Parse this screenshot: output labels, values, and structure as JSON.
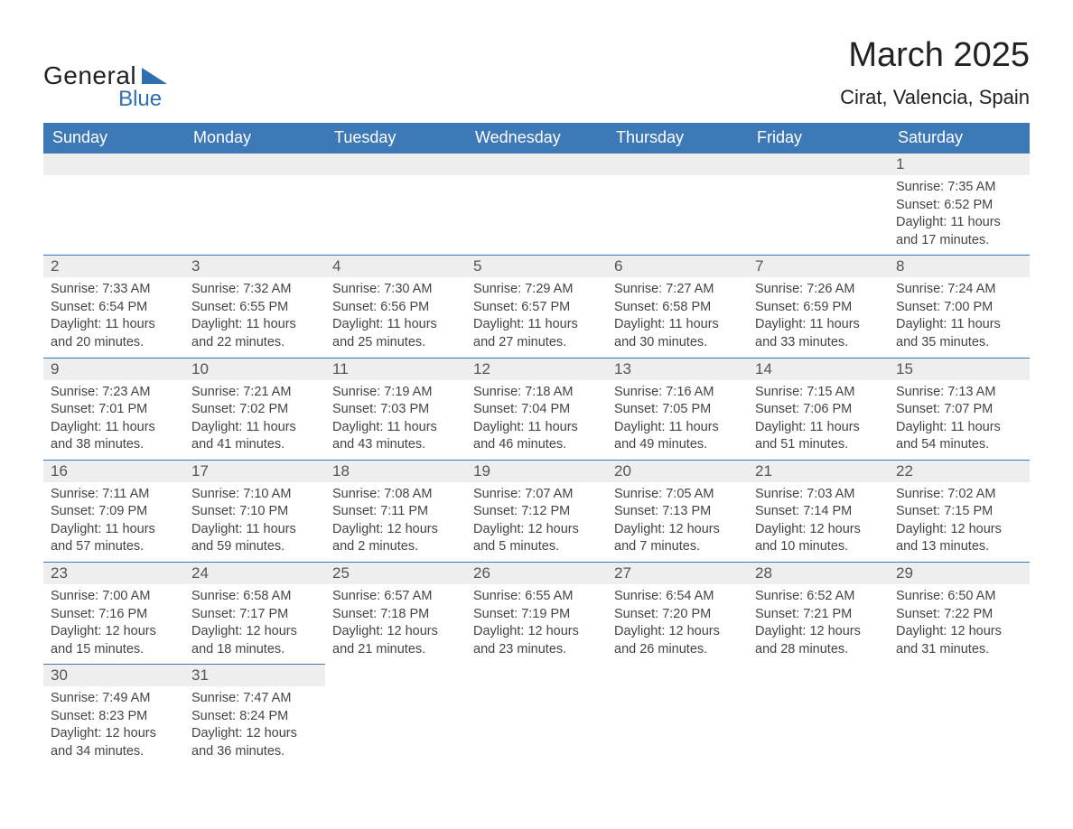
{
  "brand": {
    "word1": "General",
    "word2": "Blue",
    "accent_color": "#2f6eb0"
  },
  "header": {
    "title": "March 2025",
    "location": "Cirat, Valencia, Spain"
  },
  "colors": {
    "header_bg": "#3d79b6",
    "header_fg": "#ffffff",
    "row_divider": "#3d79b6",
    "daynum_bg": "#eeeeee",
    "text": "#444444"
  },
  "weekdays": [
    "Sunday",
    "Monday",
    "Tuesday",
    "Wednesday",
    "Thursday",
    "Friday",
    "Saturday"
  ],
  "label": {
    "sunrise": "Sunrise: ",
    "sunset": "Sunset: ",
    "daylight_prefix": "Daylight: "
  },
  "weeks": [
    [
      null,
      null,
      null,
      null,
      null,
      null,
      {
        "n": "1",
        "sunrise": "7:35 AM",
        "sunset": "6:52 PM",
        "daylight": "11 hours and 17 minutes."
      }
    ],
    [
      {
        "n": "2",
        "sunrise": "7:33 AM",
        "sunset": "6:54 PM",
        "daylight": "11 hours and 20 minutes."
      },
      {
        "n": "3",
        "sunrise": "7:32 AM",
        "sunset": "6:55 PM",
        "daylight": "11 hours and 22 minutes."
      },
      {
        "n": "4",
        "sunrise": "7:30 AM",
        "sunset": "6:56 PM",
        "daylight": "11 hours and 25 minutes."
      },
      {
        "n": "5",
        "sunrise": "7:29 AM",
        "sunset": "6:57 PM",
        "daylight": "11 hours and 27 minutes."
      },
      {
        "n": "6",
        "sunrise": "7:27 AM",
        "sunset": "6:58 PM",
        "daylight": "11 hours and 30 minutes."
      },
      {
        "n": "7",
        "sunrise": "7:26 AM",
        "sunset": "6:59 PM",
        "daylight": "11 hours and 33 minutes."
      },
      {
        "n": "8",
        "sunrise": "7:24 AM",
        "sunset": "7:00 PM",
        "daylight": "11 hours and 35 minutes."
      }
    ],
    [
      {
        "n": "9",
        "sunrise": "7:23 AM",
        "sunset": "7:01 PM",
        "daylight": "11 hours and 38 minutes."
      },
      {
        "n": "10",
        "sunrise": "7:21 AM",
        "sunset": "7:02 PM",
        "daylight": "11 hours and 41 minutes."
      },
      {
        "n": "11",
        "sunrise": "7:19 AM",
        "sunset": "7:03 PM",
        "daylight": "11 hours and 43 minutes."
      },
      {
        "n": "12",
        "sunrise": "7:18 AM",
        "sunset": "7:04 PM",
        "daylight": "11 hours and 46 minutes."
      },
      {
        "n": "13",
        "sunrise": "7:16 AM",
        "sunset": "7:05 PM",
        "daylight": "11 hours and 49 minutes."
      },
      {
        "n": "14",
        "sunrise": "7:15 AM",
        "sunset": "7:06 PM",
        "daylight": "11 hours and 51 minutes."
      },
      {
        "n": "15",
        "sunrise": "7:13 AM",
        "sunset": "7:07 PM",
        "daylight": "11 hours and 54 minutes."
      }
    ],
    [
      {
        "n": "16",
        "sunrise": "7:11 AM",
        "sunset": "7:09 PM",
        "daylight": "11 hours and 57 minutes."
      },
      {
        "n": "17",
        "sunrise": "7:10 AM",
        "sunset": "7:10 PM",
        "daylight": "11 hours and 59 minutes."
      },
      {
        "n": "18",
        "sunrise": "7:08 AM",
        "sunset": "7:11 PM",
        "daylight": "12 hours and 2 minutes."
      },
      {
        "n": "19",
        "sunrise": "7:07 AM",
        "sunset": "7:12 PM",
        "daylight": "12 hours and 5 minutes."
      },
      {
        "n": "20",
        "sunrise": "7:05 AM",
        "sunset": "7:13 PM",
        "daylight": "12 hours and 7 minutes."
      },
      {
        "n": "21",
        "sunrise": "7:03 AM",
        "sunset": "7:14 PM",
        "daylight": "12 hours and 10 minutes."
      },
      {
        "n": "22",
        "sunrise": "7:02 AM",
        "sunset": "7:15 PM",
        "daylight": "12 hours and 13 minutes."
      }
    ],
    [
      {
        "n": "23",
        "sunrise": "7:00 AM",
        "sunset": "7:16 PM",
        "daylight": "12 hours and 15 minutes."
      },
      {
        "n": "24",
        "sunrise": "6:58 AM",
        "sunset": "7:17 PM",
        "daylight": "12 hours and 18 minutes."
      },
      {
        "n": "25",
        "sunrise": "6:57 AM",
        "sunset": "7:18 PM",
        "daylight": "12 hours and 21 minutes."
      },
      {
        "n": "26",
        "sunrise": "6:55 AM",
        "sunset": "7:19 PM",
        "daylight": "12 hours and 23 minutes."
      },
      {
        "n": "27",
        "sunrise": "6:54 AM",
        "sunset": "7:20 PM",
        "daylight": "12 hours and 26 minutes."
      },
      {
        "n": "28",
        "sunrise": "6:52 AM",
        "sunset": "7:21 PM",
        "daylight": "12 hours and 28 minutes."
      },
      {
        "n": "29",
        "sunrise": "6:50 AM",
        "sunset": "7:22 PM",
        "daylight": "12 hours and 31 minutes."
      }
    ],
    [
      {
        "n": "30",
        "sunrise": "7:49 AM",
        "sunset": "8:23 PM",
        "daylight": "12 hours and 34 minutes."
      },
      {
        "n": "31",
        "sunrise": "7:47 AM",
        "sunset": "8:24 PM",
        "daylight": "12 hours and 36 minutes."
      },
      null,
      null,
      null,
      null,
      null
    ]
  ]
}
